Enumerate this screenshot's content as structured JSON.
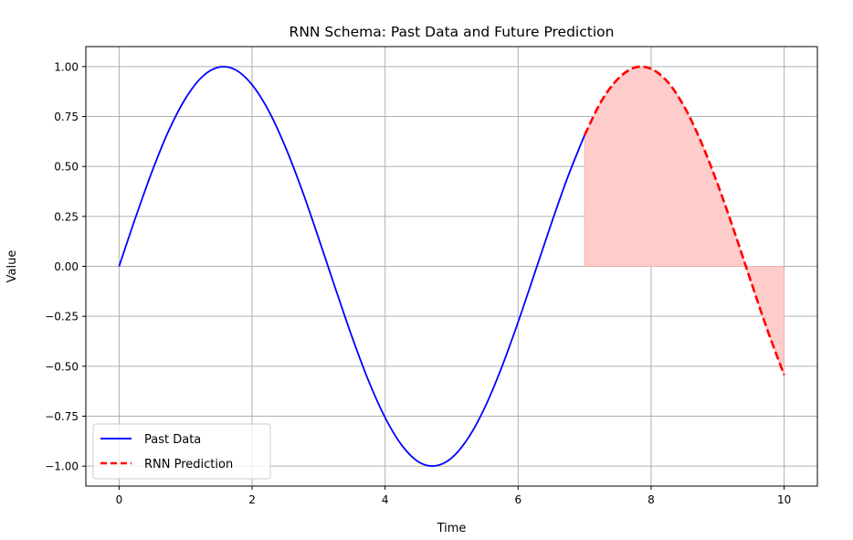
{
  "chart_data": {
    "type": "line",
    "title": "RNN Schema: Past Data and Future Prediction",
    "xlabel": "Time",
    "ylabel": "Value",
    "xlim": [
      -0.5,
      10.5
    ],
    "ylim": [
      -1.1,
      1.1
    ],
    "xticks": [
      0,
      2,
      4,
      6,
      8,
      10
    ],
    "xtick_labels": [
      "0",
      "2",
      "4",
      "6",
      "8",
      "10"
    ],
    "yticks": [
      1.0,
      0.75,
      0.5,
      0.25,
      0.0,
      -0.25,
      -0.5,
      -0.75,
      -1.0
    ],
    "ytick_labels": [
      "1.00",
      "0.75",
      "0.50",
      "0.25",
      "0.00",
      "−0.25",
      "−0.50",
      "−0.75",
      "−1.00"
    ],
    "grid": true,
    "legend_position": "lower-left",
    "series": [
      {
        "name": "Past Data",
        "style": "solid",
        "color": "#0000ff",
        "x": [
          0,
          0.25,
          0.5,
          0.75,
          1.0,
          1.25,
          1.5,
          1.75,
          2.0,
          2.25,
          2.5,
          2.75,
          3.0,
          3.25,
          3.5,
          3.75,
          4.0,
          4.25,
          4.5,
          4.75,
          5.0,
          5.25,
          5.5,
          5.75,
          6.0,
          6.25,
          6.5,
          6.75,
          7.0
        ],
        "y": [
          0.0,
          0.247,
          0.479,
          0.682,
          0.841,
          0.949,
          0.997,
          0.984,
          0.909,
          0.778,
          0.598,
          0.382,
          0.141,
          -0.108,
          -0.351,
          -0.572,
          -0.757,
          -0.895,
          -0.978,
          -0.999,
          -0.959,
          -0.859,
          -0.706,
          -0.508,
          -0.279,
          -0.033,
          0.215,
          0.45,
          0.657
        ]
      },
      {
        "name": "RNN Prediction",
        "style": "dashed",
        "color": "#ff0000",
        "x": [
          7.0,
          7.25,
          7.5,
          7.75,
          8.0,
          8.25,
          8.5,
          8.75,
          9.0,
          9.25,
          9.5,
          9.75,
          10.0
        ],
        "y": [
          0.657,
          0.826,
          0.938,
          0.995,
          0.989,
          0.923,
          0.798,
          0.624,
          0.412,
          0.175,
          -0.075,
          -0.32,
          -0.544
        ]
      }
    ],
    "fill_between": {
      "x_range": [
        7.0,
        10.0
      ],
      "baseline": 0.0,
      "color": "#ffcccc"
    }
  }
}
